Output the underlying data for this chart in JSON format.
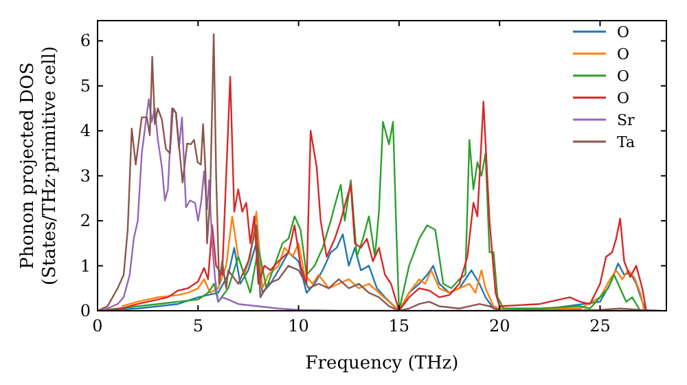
{
  "chart_data": {
    "type": "line",
    "xlabel": "Frequency (THz)",
    "ylabel": "Phonon projected DOS\n(States/THz·primitive cell)",
    "xlim": [
      0,
      28.3
    ],
    "ylim": [
      0,
      6.45
    ],
    "xticks": [
      0,
      5,
      10,
      15,
      20,
      25
    ],
    "yticks": [
      0,
      1,
      2,
      3,
      4,
      5,
      6
    ],
    "legend": "top right",
    "grid": false,
    "marker": "none",
    "line_style": "solid",
    "series": [
      {
        "name": "O",
        "color": "#1f77b4",
        "x": [
          0,
          2,
          3,
          4,
          5,
          5.5,
          6,
          6.5,
          6.8,
          7.1,
          7.5,
          7.9,
          8.2,
          8.6,
          9,
          9.5,
          10,
          10.4,
          10.8,
          11.2,
          11.6,
          11.9,
          12.2,
          12.5,
          12.8,
          13.1,
          13.5,
          13.9,
          14.3,
          15,
          15.5,
          16,
          16.4,
          16.7,
          17,
          17.5,
          18,
          18.6,
          19,
          19.3,
          19.7,
          22,
          25,
          25.5,
          25.9,
          26.2,
          26.5,
          26.8,
          27.1,
          27.3
        ],
        "values": [
          0,
          0.05,
          0.1,
          0.15,
          0.3,
          0.35,
          0.4,
          0.8,
          1.4,
          0.6,
          0.9,
          1.5,
          0.4,
          0.6,
          0.9,
          1.3,
          1.1,
          0.4,
          0.6,
          0.9,
          1.3,
          1.4,
          1.7,
          1.0,
          1.4,
          0.9,
          1.0,
          0.5,
          0.3,
          0,
          0.4,
          0.6,
          0.8,
          1.0,
          0.6,
          0.4,
          0.5,
          0.9,
          0.6,
          0.3,
          0.05,
          0.02,
          0.2,
          0.6,
          1.05,
          0.8,
          0.85,
          0.6,
          0.2,
          0
        ]
      },
      {
        "name": "O",
        "color": "#ff7f0e",
        "x": [
          1.2,
          2,
          3,
          4,
          4.5,
          5,
          5.3,
          5.6,
          6,
          6.4,
          6.7,
          7,
          7.3,
          7.6,
          7.9,
          8.2,
          8.5,
          9,
          9.3,
          9.7,
          10,
          10.3,
          10.7,
          11,
          11.5,
          12,
          12.5,
          13,
          13.5,
          14,
          14.5,
          15,
          15.5,
          16,
          16.3,
          16.6,
          17,
          17.5,
          18,
          18.5,
          18.8,
          19.1,
          19.3,
          19.7,
          20,
          24,
          25,
          25.5,
          25.8,
          26.1,
          26.4,
          26.7,
          27,
          27.2
        ],
        "values": [
          0.1,
          0.2,
          0.3,
          0.35,
          0.4,
          0.5,
          0.7,
          0.4,
          0.5,
          1.0,
          2.1,
          1.2,
          0.8,
          1.2,
          2.2,
          0.5,
          0.8,
          1.0,
          1.4,
          1.2,
          1.5,
          0.8,
          0.6,
          0.8,
          0.5,
          0.6,
          0.7,
          0.5,
          0.6,
          0.4,
          0.2,
          0,
          0.4,
          0.7,
          0.6,
          0.9,
          0.5,
          0.4,
          0.5,
          0.6,
          0.4,
          0.9,
          0.5,
          0.1,
          0.05,
          0.05,
          0.3,
          0.7,
          0.9,
          0.7,
          0.9,
          0.75,
          0.4,
          0
        ]
      },
      {
        "name": "O",
        "color": "#2ca02c",
        "x": [
          0,
          2,
          3,
          4,
          5,
          5.5,
          5.8,
          6,
          6.5,
          7,
          7.3,
          7.6,
          8,
          8.4,
          8.8,
          9.2,
          9.5,
          9.8,
          10.1,
          10.4,
          10.8,
          11.2,
          11.6,
          11.9,
          12.1,
          12.3,
          12.6,
          12.9,
          13.2,
          13.5,
          13.8,
          14,
          14.2,
          14.5,
          14.7,
          14.85,
          15,
          15.5,
          16,
          16.4,
          16.8,
          17.2,
          17.6,
          18,
          18.3,
          18.5,
          18.7,
          18.9,
          19.1,
          19.3,
          19.5,
          19.7,
          19.9,
          20.2,
          22,
          24,
          24.5,
          25,
          25.4,
          25.7,
          26,
          26.3,
          26.6,
          27
        ],
        "values": [
          0,
          0.1,
          0.15,
          0.2,
          0.25,
          0.4,
          0.6,
          0.2,
          0.5,
          1.2,
          0.8,
          0.4,
          1.4,
          0.5,
          1.0,
          1.5,
          1.6,
          2.1,
          1.8,
          0.8,
          1.0,
          1.4,
          2.0,
          2.5,
          2.8,
          2.0,
          2.9,
          1.2,
          1.6,
          2.1,
          1.2,
          2.2,
          4.2,
          3.7,
          4.2,
          2.0,
          0,
          1.0,
          1.6,
          1.9,
          1.8,
          0.6,
          0.5,
          0.7,
          0.8,
          3.8,
          2.7,
          3.3,
          3.0,
          3.5,
          1.3,
          1.3,
          0.3,
          0.05,
          0.05,
          0.1,
          0.05,
          0.3,
          0.5,
          0.8,
          0.5,
          0.2,
          0.3,
          0
        ]
      },
      {
        "name": "O",
        "color": "#d62728",
        "x": [
          0,
          1,
          2,
          2.5,
          3,
          3.5,
          4,
          4.5,
          5,
          5.3,
          5.5,
          5.7,
          5.9,
          6.2,
          6.6,
          6.8,
          7,
          7.2,
          7.4,
          7.6,
          7.8,
          8,
          8.3,
          8.6,
          9,
          9.5,
          9.8,
          10.1,
          10.4,
          10.6,
          10.9,
          11.1,
          11.4,
          11.8,
          12.1,
          12.4,
          12.6,
          12.8,
          13.1,
          13.4,
          13.7,
          14,
          14.3,
          14.6,
          15,
          15.5,
          16,
          16.5,
          17,
          17.5,
          18,
          18.4,
          18.7,
          18.9,
          19.2,
          19.5,
          19.8,
          20,
          22,
          23.5,
          24,
          24.5,
          25,
          25.3,
          25.6,
          25.8,
          26,
          26.2,
          26.5,
          26.8,
          27.1,
          27.3
        ],
        "values": [
          0,
          0.03,
          0.15,
          0.2,
          0.25,
          0.3,
          0.45,
          0.5,
          0.65,
          0.95,
          0.7,
          1.9,
          1.0,
          0.8,
          5.2,
          2.2,
          2.7,
          2.2,
          2.4,
          1.5,
          2.1,
          0.6,
          1.0,
          0.9,
          1.1,
          1.3,
          1.9,
          1.0,
          0.6,
          4.0,
          3.2,
          2.0,
          1.2,
          1.6,
          2.0,
          2.5,
          2.8,
          1.5,
          1.4,
          1.6,
          1.1,
          1.4,
          0.8,
          0.6,
          0,
          0.3,
          0.5,
          0.45,
          0.3,
          0.35,
          0.6,
          1.2,
          2.4,
          2.1,
          4.65,
          2.0,
          0.4,
          0.1,
          0.15,
          0.3,
          0.2,
          0.15,
          0.6,
          1.2,
          1.3,
          1.6,
          2.05,
          1.1,
          0.75,
          1.0,
          0.5,
          0
        ]
      },
      {
        "name": "Sr",
        "color": "#9467bd",
        "x": [
          0,
          0.5,
          1,
          1.3,
          1.6,
          1.8,
          2,
          2.2,
          2.4,
          2.55,
          2.7,
          2.85,
          3,
          3.2,
          3.35,
          3.5,
          3.7,
          3.9,
          4.05,
          4.2,
          4.4,
          4.6,
          4.85,
          5,
          5.15,
          5.3,
          5.45,
          5.55,
          5.7,
          5.85,
          6,
          6.2,
          6.5,
          7,
          8,
          9,
          10,
          12,
          28
        ],
        "values": [
          0,
          0.05,
          0.15,
          0.3,
          0.8,
          1.6,
          2.0,
          3.5,
          4.2,
          4.7,
          4.2,
          4.5,
          3.8,
          3.2,
          2.45,
          2.7,
          4.5,
          4.4,
          3.6,
          4.3,
          2.3,
          2.45,
          2.4,
          2.0,
          2.4,
          3.1,
          2.25,
          2.9,
          1.5,
          0.7,
          0.2,
          0.3,
          0.25,
          0.15,
          0.1,
          0.05,
          0.02,
          0,
          0
        ]
      },
      {
        "name": "Ta",
        "color": "#8c564b",
        "x": [
          0,
          0.5,
          1,
          1.3,
          1.5,
          1.7,
          1.9,
          2.2,
          2.45,
          2.6,
          2.72,
          2.85,
          3,
          3.2,
          3.4,
          3.6,
          3.75,
          3.9,
          4.23,
          4.46,
          4.64,
          4.8,
          4.98,
          5.14,
          5.25,
          5.37,
          5.45,
          5.6,
          5.78,
          5.9,
          6.05,
          6.2,
          6.4,
          6.5,
          7,
          7.5,
          7.9,
          8.1,
          8.5,
          9,
          9.5,
          10,
          10.5,
          11,
          11.5,
          12,
          12.5,
          13,
          13.5,
          14,
          14.5,
          15,
          15.5,
          16,
          16.5,
          17,
          18,
          19,
          19.5,
          20,
          25,
          26,
          27,
          28
        ],
        "values": [
          0,
          0.1,
          0.5,
          0.8,
          1.8,
          4.05,
          3.25,
          4.3,
          4.3,
          3.9,
          5.65,
          4.15,
          4.5,
          4.25,
          3.6,
          3.5,
          4.5,
          4.4,
          2.85,
          3.72,
          3.7,
          3.8,
          3.3,
          3.25,
          4.15,
          3.1,
          1.5,
          2.5,
          6.15,
          3.0,
          0.6,
          1.1,
          0.5,
          0.9,
          0.6,
          1.1,
          1.9,
          0.3,
          0.6,
          0.7,
          1.0,
          0.9,
          0.5,
          0.6,
          0.5,
          0.7,
          0.5,
          0.6,
          0.4,
          0.3,
          0.1,
          0,
          0.05,
          0.15,
          0.2,
          0.1,
          0.05,
          0.15,
          0.1,
          0,
          0.02,
          0.05,
          0.02,
          0
        ]
      }
    ]
  }
}
